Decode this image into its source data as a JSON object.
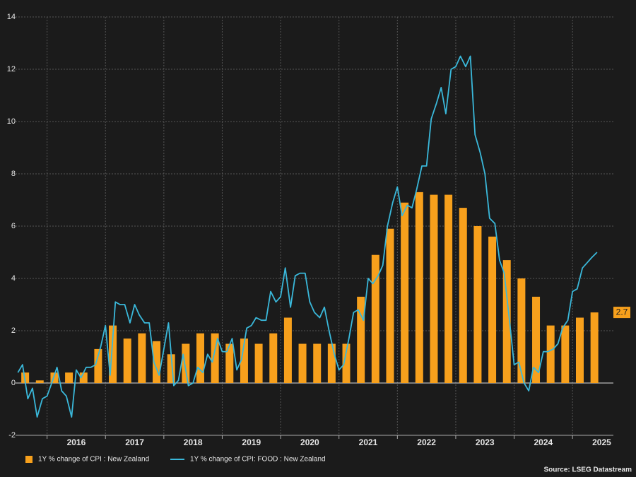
{
  "chart_data": {
    "type": "bar-line",
    "source": "Source: LSEG Datastream",
    "xlim": [
      2015.46,
      2025.7
    ],
    "xticks": [
      2016,
      2017,
      2018,
      2019,
      2020,
      2021,
      2022,
      2023,
      2024,
      2025
    ],
    "ylim": [
      -2,
      14
    ],
    "yticks": [
      -2,
      0,
      2,
      4,
      6,
      8,
      10,
      12,
      14
    ],
    "grid": true,
    "series": [
      {
        "name": "1Y % change of CPI : New Zealand",
        "kind": "bar",
        "color": "#f7a01c",
        "x": [
          2015.625,
          2015.875,
          2016.125,
          2016.375,
          2016.625,
          2016.875,
          2017.125,
          2017.375,
          2017.625,
          2017.875,
          2018.125,
          2018.375,
          2018.625,
          2018.875,
          2019.125,
          2019.375,
          2019.625,
          2019.875,
          2020.125,
          2020.375,
          2020.625,
          2020.875,
          2021.125,
          2021.375,
          2021.625,
          2021.875,
          2022.125,
          2022.375,
          2022.625,
          2022.875,
          2023.125,
          2023.375,
          2023.625,
          2023.875,
          2024.125,
          2024.375,
          2024.625,
          2024.875,
          2025.125,
          2025.375
        ],
        "values": [
          0.4,
          0.1,
          0.4,
          0.4,
          0.4,
          1.3,
          2.2,
          1.7,
          1.9,
          1.6,
          1.1,
          1.5,
          1.9,
          1.9,
          1.5,
          1.7,
          1.5,
          1.9,
          2.5,
          1.5,
          1.5,
          1.5,
          1.5,
          3.3,
          4.9,
          5.9,
          6.9,
          7.3,
          7.2,
          7.2,
          6.7,
          6.0,
          5.6,
          4.7,
          4.0,
          3.3,
          2.2,
          2.2,
          2.5,
          2.7
        ]
      },
      {
        "name": "1Y % change of CPI: FOOD : New Zealand",
        "kind": "line",
        "color": "#3ab8da",
        "x": [
          2015.5,
          2015.58,
          2015.67,
          2015.75,
          2015.83,
          2015.92,
          2016.0,
          2016.08,
          2016.17,
          2016.25,
          2016.33,
          2016.42,
          2016.5,
          2016.58,
          2016.67,
          2016.75,
          2016.83,
          2016.92,
          2017.0,
          2017.08,
          2017.17,
          2017.25,
          2017.33,
          2017.42,
          2017.5,
          2017.58,
          2017.67,
          2017.75,
          2017.83,
          2017.92,
          2018.0,
          2018.08,
          2018.17,
          2018.25,
          2018.33,
          2018.42,
          2018.5,
          2018.58,
          2018.67,
          2018.75,
          2018.83,
          2018.92,
          2019.0,
          2019.08,
          2019.17,
          2019.25,
          2019.33,
          2019.42,
          2019.5,
          2019.58,
          2019.67,
          2019.75,
          2019.83,
          2019.92,
          2020.0,
          2020.08,
          2020.17,
          2020.25,
          2020.33,
          2020.42,
          2020.5,
          2020.58,
          2020.67,
          2020.75,
          2020.83,
          2020.92,
          2021.0,
          2021.08,
          2021.17,
          2021.25,
          2021.33,
          2021.42,
          2021.5,
          2021.58,
          2021.67,
          2021.75,
          2021.83,
          2021.92,
          2022.0,
          2022.08,
          2022.17,
          2022.25,
          2022.33,
          2022.42,
          2022.5,
          2022.58,
          2022.67,
          2022.75,
          2022.83,
          2022.92,
          2023.0,
          2023.08,
          2023.17,
          2023.25,
          2023.33,
          2023.42,
          2023.5,
          2023.58,
          2023.67,
          2023.75,
          2023.83,
          2023.92,
          2024.0,
          2024.08,
          2024.17,
          2024.25,
          2024.33,
          2024.42,
          2024.5,
          2024.58,
          2024.67,
          2024.75,
          2024.83,
          2024.92,
          2025.0,
          2025.08,
          2025.17,
          2025.25,
          2025.33,
          2025.42
        ],
        "values": [
          0.4,
          0.7,
          -0.6,
          -0.2,
          -1.3,
          -0.6,
          -0.5,
          0.0,
          0.6,
          -0.3,
          -0.5,
          -1.3,
          0.5,
          0.2,
          0.6,
          0.6,
          0.7,
          1.4,
          2.2,
          0.3,
          3.1,
          3.0,
          3.0,
          2.3,
          3.0,
          2.6,
          2.3,
          2.3,
          0.8,
          0.3,
          1.3,
          2.3,
          -0.1,
          0.1,
          1.1,
          -0.1,
          0.0,
          0.6,
          0.4,
          1.1,
          0.8,
          1.7,
          1.2,
          1.2,
          1.7,
          0.5,
          0.9,
          2.1,
          2.2,
          2.5,
          2.4,
          2.4,
          3.5,
          3.1,
          3.3,
          4.4,
          2.9,
          4.1,
          4.2,
          4.2,
          3.1,
          2.7,
          2.5,
          2.9,
          2.0,
          1.1,
          0.5,
          0.7,
          1.7,
          2.7,
          2.8,
          2.4,
          4.0,
          3.8,
          4.1,
          4.5,
          6.0,
          6.9,
          7.5,
          6.4,
          6.8,
          6.7,
          7.4,
          8.3,
          8.3,
          10.1,
          10.7,
          11.3,
          10.3,
          12.0,
          12.1,
          12.5,
          12.1,
          12.5,
          9.5,
          8.8,
          8.0,
          6.3,
          6.1,
          4.7,
          4.2,
          2.4,
          0.7,
          0.8,
          0.0,
          -0.3,
          0.6,
          0.4,
          1.2,
          1.2,
          1.3,
          1.5,
          2.1,
          2.4,
          3.5,
          3.6,
          4.4,
          4.6,
          4.8,
          5.0
        ]
      }
    ]
  }
}
